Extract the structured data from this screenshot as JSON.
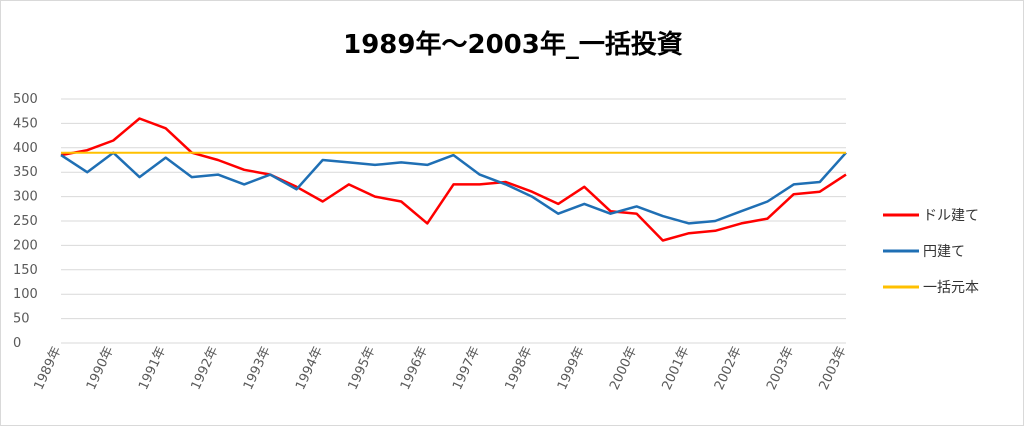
{
  "chart_data": {
    "type": "line",
    "title": "1989年～2003年_一括投資",
    "xlabel": "",
    "ylabel": "",
    "ylim": [
      0,
      500
    ],
    "yticks": [
      0,
      50,
      100,
      150,
      200,
      250,
      300,
      350,
      400,
      450,
      500
    ],
    "xticks": [
      "1989年",
      "1990年",
      "1991年",
      "1992年",
      "1993年",
      "1994年",
      "1995年",
      "1996年",
      "1997年",
      "1998年",
      "1999年",
      "2000年",
      "2001年",
      "2002年",
      "2003年",
      "2003年"
    ],
    "x": [
      1989.0,
      1989.5,
      1990.0,
      1990.5,
      1991.0,
      1991.5,
      1992.0,
      1992.5,
      1993.0,
      1993.5,
      1994.0,
      1994.5,
      1995.0,
      1995.5,
      1996.0,
      1996.5,
      1997.0,
      1997.5,
      1998.0,
      1998.5,
      1999.0,
      1999.5,
      2000.0,
      2000.5,
      2001.0,
      2001.5,
      2002.0,
      2002.5,
      2003.0,
      2003.5,
      2004.0
    ],
    "grid": true,
    "legend_position": "right",
    "series": [
      {
        "name": "ドル建て",
        "color": "#ff0000",
        "values": [
          385,
          395,
          415,
          460,
          440,
          390,
          375,
          355,
          345,
          320,
          290,
          325,
          300,
          290,
          245,
          325,
          325,
          330,
          310,
          285,
          320,
          270,
          265,
          210,
          225,
          230,
          245,
          255,
          305,
          310,
          345
        ]
      },
      {
        "name": "円建て",
        "color": "#1f6fb4",
        "values": [
          385,
          350,
          390,
          340,
          380,
          340,
          345,
          325,
          345,
          315,
          375,
          370,
          365,
          370,
          365,
          385,
          345,
          325,
          300,
          265,
          285,
          265,
          280,
          260,
          245,
          250,
          270,
          290,
          325,
          330,
          390
        ]
      },
      {
        "name": "一括元本",
        "color": "#ffc000",
        "values": [
          390,
          390,
          390,
          390,
          390,
          390,
          390,
          390,
          390,
          390,
          390,
          390,
          390,
          390,
          390,
          390,
          390,
          390,
          390,
          390,
          390,
          390,
          390,
          390,
          390,
          390,
          390,
          390,
          390,
          390,
          390
        ]
      }
    ]
  }
}
